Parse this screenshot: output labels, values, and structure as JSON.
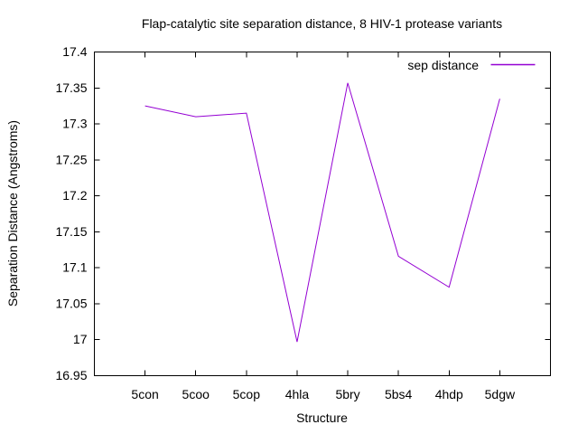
{
  "legend": {
    "label": "sep distance"
  },
  "colors": {
    "line": "#9400d3",
    "axis": "#000000",
    "text": "#000000",
    "background": "#ffffff"
  },
  "chart_data": {
    "type": "line",
    "title": "Flap-catalytic site separation distance, 8 HIV-1 protease variants",
    "xlabel": "Structure",
    "ylabel": "Separation Distance (Angstroms)",
    "categories": [
      "5con",
      "5coo",
      "5cop",
      "4hla",
      "5bry",
      "5bs4",
      "4hdp",
      "5dgw"
    ],
    "series": [
      {
        "name": "sep distance",
        "values": [
          17.325,
          17.31,
          17.315,
          16.997,
          17.357,
          17.116,
          17.073,
          17.335
        ]
      }
    ],
    "ylim": [
      16.95,
      17.4
    ],
    "ytick_values": [
      16.95,
      17.0,
      17.05,
      17.1,
      17.15,
      17.2,
      17.25,
      17.3,
      17.35,
      17.4
    ],
    "ytick_labels": [
      "16.95",
      "17",
      "17.05",
      "17.1",
      "17.15",
      "17.2",
      "17.25",
      "17.3",
      "17.35",
      "17.4"
    ],
    "grid": false,
    "legend_position": "top-right"
  }
}
